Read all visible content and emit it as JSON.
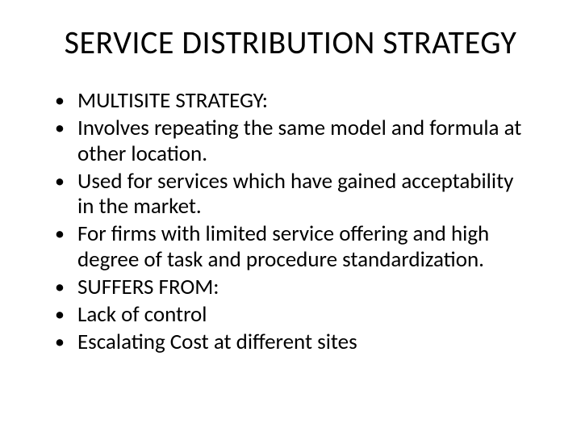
{
  "title": "SERVICE DISTRIBUTION STRATEGY",
  "bullets": [
    "MULTISITE  STRATEGY:",
    "Involves repeating the same model and formula at other location.",
    "Used for services which have gained acceptability in the market.",
    "For firms with limited service offering and high degree of task and procedure standardization.",
    "SUFFERS FROM:",
    "Lack of control",
    "Escalating Cost at different sites"
  ],
  "style": {
    "background_color": "#ffffff",
    "text_color": "#000000",
    "title_fontsize": 40,
    "body_fontsize": 27,
    "font_family": "Calibri"
  }
}
